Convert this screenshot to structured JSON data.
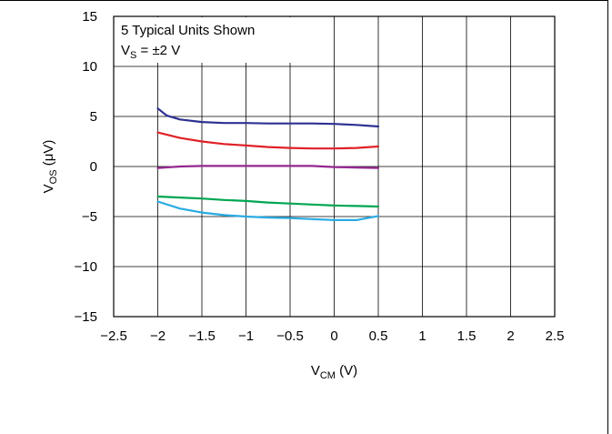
{
  "chart_data": {
    "type": "line",
    "xlabel_main": "V",
    "xlabel_sub": "CM",
    "xlabel_unit": " (V)",
    "ylabel_main": "V",
    "ylabel_sub": "OS",
    "ylabel_unit": " (μV)",
    "xlim": [
      -2.5,
      2.5
    ],
    "ylim": [
      -15,
      15
    ],
    "x_ticks": [
      -2.5,
      -2,
      -1.5,
      -1,
      -0.5,
      0,
      0.5,
      1,
      1.5,
      2,
      2.5
    ],
    "y_ticks": [
      -15,
      -10,
      -5,
      0,
      5,
      10,
      15
    ],
    "grid": true,
    "annotation_line1": "5 Typical Units Shown",
    "annotation_line2_main": "V",
    "annotation_line2_sub": "S",
    "annotation_line2_rest": " = ±2 V",
    "series": [
      {
        "color": "#2e3192",
        "x": [
          -2,
          -1.9,
          -1.75,
          -1.5,
          -1.25,
          -1,
          -0.75,
          -0.5,
          -0.25,
          0,
          0.25,
          0.5
        ],
        "y": [
          5.8,
          5.1,
          4.7,
          4.45,
          4.35,
          4.35,
          4.3,
          4.3,
          4.3,
          4.25,
          4.15,
          4.0
        ]
      },
      {
        "color": "#e02128",
        "x": [
          -2,
          -1.75,
          -1.5,
          -1.25,
          -1,
          -0.75,
          -0.5,
          -0.25,
          0,
          0.25,
          0.5
        ],
        "y": [
          3.4,
          2.85,
          2.5,
          2.25,
          2.1,
          1.95,
          1.85,
          1.8,
          1.8,
          1.85,
          2.0
        ]
      },
      {
        "color": "#93278f",
        "x": [
          -2,
          -1.75,
          -1.5,
          -1.25,
          -1,
          -0.75,
          -0.5,
          -0.25,
          0,
          0.25,
          0.5
        ],
        "y": [
          -0.15,
          0.0,
          0.05,
          0.05,
          0.05,
          0.05,
          0.05,
          0.05,
          -0.05,
          -0.1,
          -0.15
        ]
      },
      {
        "color": "#00a651",
        "x": [
          -2,
          -1.75,
          -1.5,
          -1.25,
          -1,
          -0.75,
          -0.5,
          -0.25,
          0,
          0.25,
          0.5
        ],
        "y": [
          -3.0,
          -3.1,
          -3.2,
          -3.35,
          -3.45,
          -3.6,
          -3.7,
          -3.8,
          -3.9,
          -3.95,
          -4.0
        ]
      },
      {
        "color": "#29abe2",
        "x": [
          -2,
          -1.75,
          -1.5,
          -1.25,
          -1,
          -0.75,
          -0.5,
          -0.25,
          0,
          0.25,
          0.5
        ],
        "y": [
          -3.5,
          -4.2,
          -4.6,
          -4.85,
          -5.0,
          -5.1,
          -5.15,
          -5.25,
          -5.35,
          -5.35,
          -4.95
        ]
      }
    ]
  }
}
